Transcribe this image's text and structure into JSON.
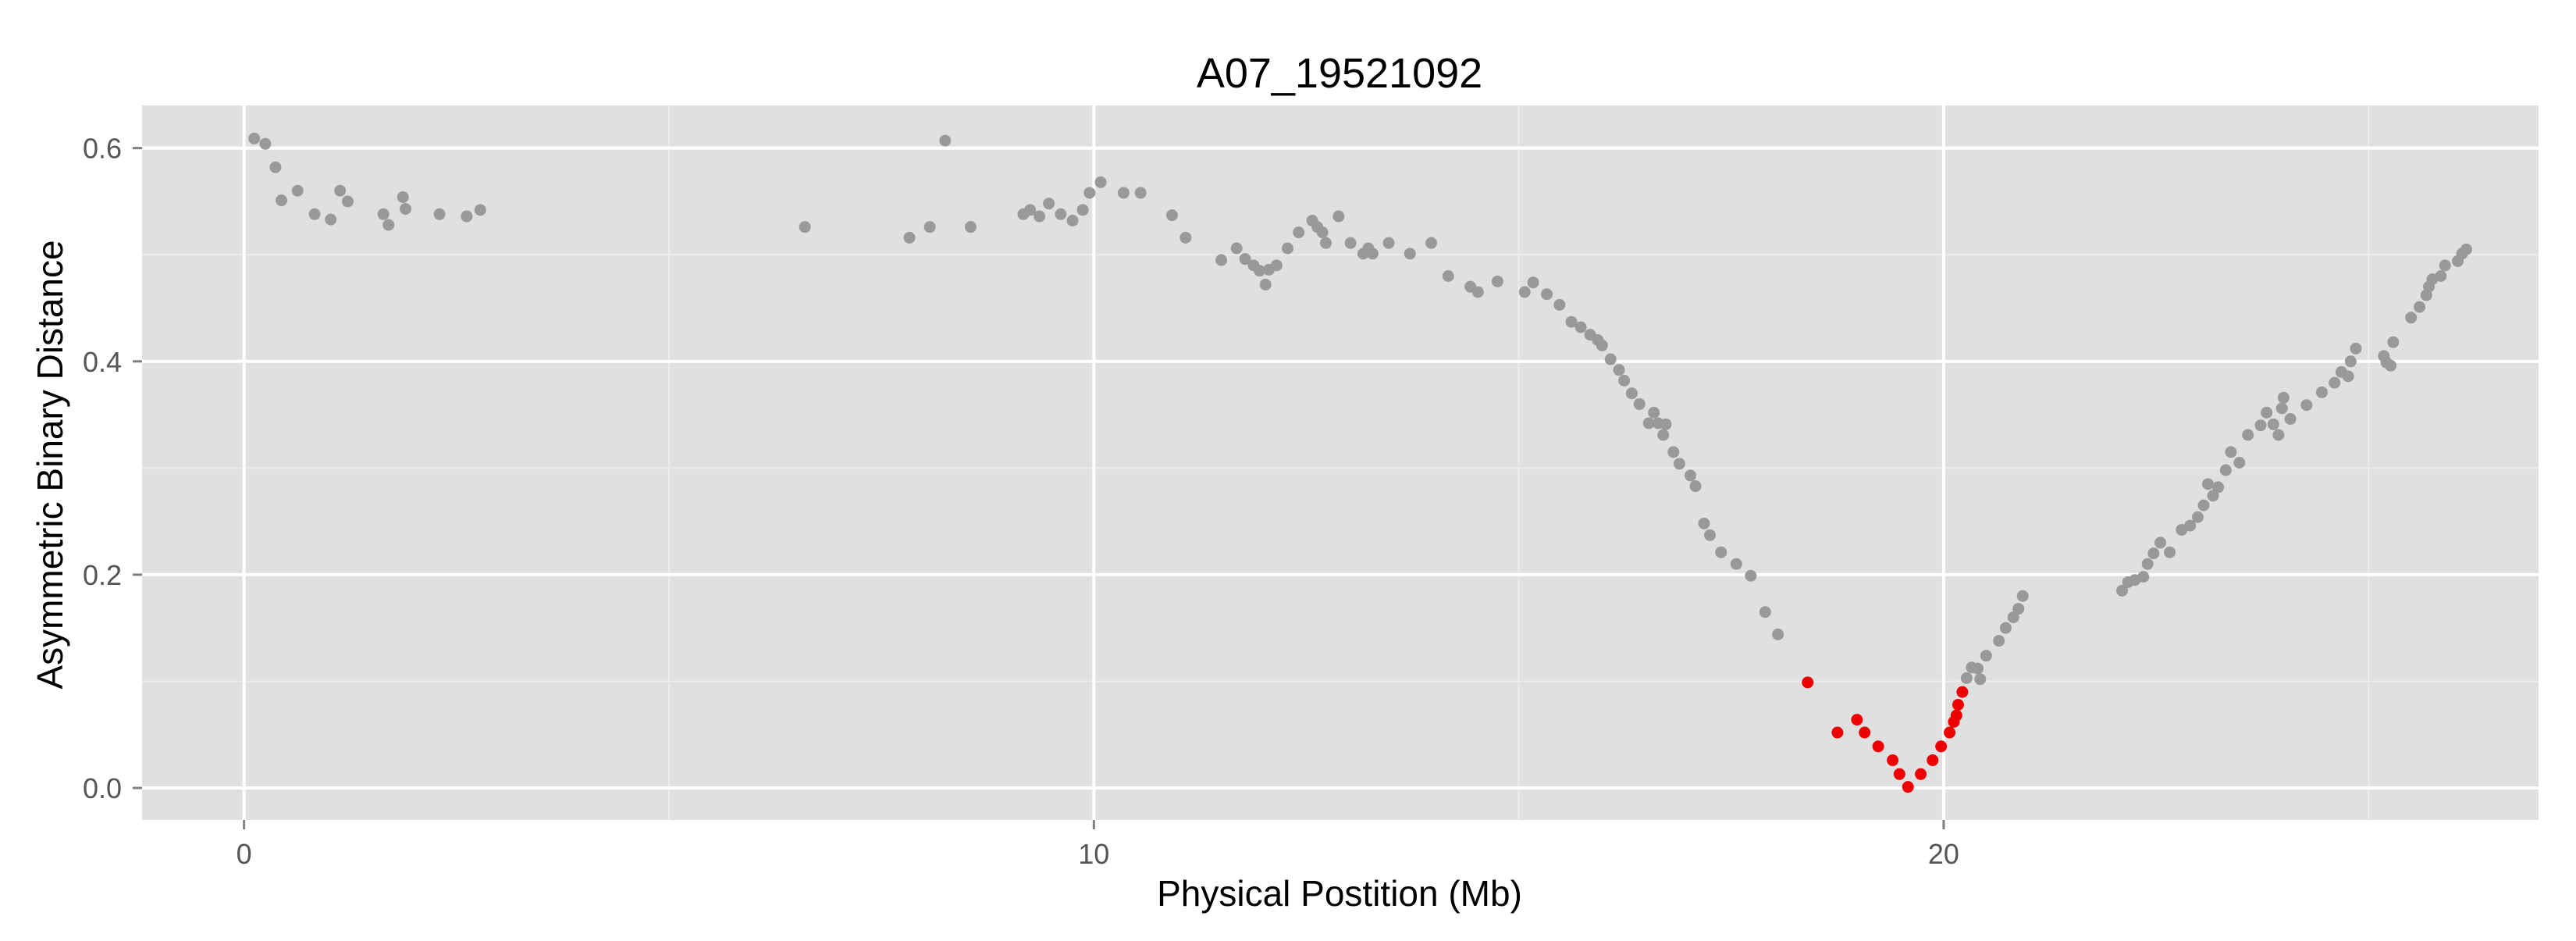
{
  "chart_data": {
    "type": "scatter",
    "title": "A07_19521092",
    "xlabel": "Physical Postition (Mb)",
    "ylabel": "Asymmetric Binary Distance",
    "xlim": [
      -1.2,
      27.0
    ],
    "ylim": [
      -0.03,
      0.64
    ],
    "x_ticks": [
      0,
      10,
      20
    ],
    "x_tick_labels": [
      "0",
      "10",
      "20"
    ],
    "y_ticks": [
      0.0,
      0.2,
      0.4,
      0.6
    ],
    "y_tick_labels": [
      "0.0",
      "0.2",
      "0.4",
      "0.6"
    ],
    "grid": true,
    "panel_color": "#e0e0e0",
    "series": [
      {
        "color": "#999999",
        "points": [
          [
            0.12,
            0.609
          ],
          [
            0.25,
            0.604
          ],
          [
            0.37,
            0.582
          ],
          [
            0.44,
            0.551
          ],
          [
            0.63,
            0.56
          ],
          [
            0.83,
            0.538
          ],
          [
            1.02,
            0.533
          ],
          [
            1.13,
            0.56
          ],
          [
            1.22,
            0.55
          ],
          [
            1.64,
            0.538
          ],
          [
            1.7,
            0.528
          ],
          [
            1.87,
            0.554
          ],
          [
            1.9,
            0.543
          ],
          [
            2.3,
            0.538
          ],
          [
            2.62,
            0.536
          ],
          [
            2.78,
            0.542
          ],
          [
            6.6,
            0.526
          ],
          [
            7.83,
            0.516
          ],
          [
            8.07,
            0.526
          ],
          [
            8.25,
            0.607
          ],
          [
            8.55,
            0.526
          ],
          [
            9.17,
            0.538
          ],
          [
            9.25,
            0.542
          ],
          [
            9.36,
            0.536
          ],
          [
            9.47,
            0.548
          ],
          [
            9.61,
            0.538
          ],
          [
            9.75,
            0.532
          ],
          [
            9.87,
            0.542
          ],
          [
            9.95,
            0.558
          ],
          [
            10.08,
            0.568
          ],
          [
            10.35,
            0.558
          ],
          [
            10.55,
            0.558
          ],
          [
            10.92,
            0.537
          ],
          [
            11.08,
            0.516
          ],
          [
            11.5,
            0.495
          ],
          [
            11.68,
            0.506
          ],
          [
            11.78,
            0.496
          ],
          [
            11.88,
            0.49
          ],
          [
            11.95,
            0.485
          ],
          [
            12.02,
            0.472
          ],
          [
            12.06,
            0.486
          ],
          [
            12.15,
            0.49
          ],
          [
            12.28,
            0.506
          ],
          [
            12.41,
            0.521
          ],
          [
            12.57,
            0.532
          ],
          [
            12.63,
            0.526
          ],
          [
            12.69,
            0.521
          ],
          [
            12.73,
            0.511
          ],
          [
            12.88,
            0.536
          ],
          [
            13.02,
            0.511
          ],
          [
            13.17,
            0.501
          ],
          [
            13.23,
            0.506
          ],
          [
            13.28,
            0.501
          ],
          [
            13.47,
            0.511
          ],
          [
            13.72,
            0.501
          ],
          [
            13.97,
            0.511
          ],
          [
            14.17,
            0.48
          ],
          [
            14.43,
            0.47
          ],
          [
            14.52,
            0.465
          ],
          [
            14.75,
            0.475
          ],
          [
            15.07,
            0.465
          ],
          [
            15.17,
            0.474
          ],
          [
            15.33,
            0.463
          ],
          [
            15.48,
            0.453
          ],
          [
            15.62,
            0.437
          ],
          [
            15.73,
            0.432
          ],
          [
            15.84,
            0.425
          ],
          [
            15.93,
            0.42
          ],
          [
            15.98,
            0.415
          ],
          [
            16.08,
            0.402
          ],
          [
            16.18,
            0.392
          ],
          [
            16.24,
            0.382
          ],
          [
            16.33,
            0.37
          ],
          [
            16.42,
            0.36
          ],
          [
            16.53,
            0.342
          ],
          [
            16.59,
            0.352
          ],
          [
            16.64,
            0.342
          ],
          [
            16.73,
            0.341
          ],
          [
            16.7,
            0.331
          ],
          [
            16.82,
            0.315
          ],
          [
            16.89,
            0.304
          ],
          [
            17.02,
            0.293
          ],
          [
            17.08,
            0.283
          ],
          [
            17.18,
            0.248
          ],
          [
            17.25,
            0.237
          ],
          [
            17.38,
            0.221
          ],
          [
            17.56,
            0.21
          ],
          [
            17.73,
            0.199
          ],
          [
            17.9,
            0.165
          ],
          [
            18.05,
            0.144
          ],
          [
            20.27,
            0.103
          ],
          [
            20.33,
            0.113
          ],
          [
            20.4,
            0.112
          ],
          [
            20.43,
            0.102
          ],
          [
            20.5,
            0.124
          ],
          [
            20.65,
            0.138
          ],
          [
            20.73,
            0.15
          ],
          [
            20.82,
            0.16
          ],
          [
            20.88,
            0.168
          ],
          [
            20.93,
            0.18
          ],
          [
            22.1,
            0.185
          ],
          [
            22.17,
            0.193
          ],
          [
            22.25,
            0.195
          ],
          [
            22.35,
            0.198
          ],
          [
            22.4,
            0.21
          ],
          [
            22.47,
            0.22
          ],
          [
            22.55,
            0.23
          ],
          [
            22.66,
            0.221
          ],
          [
            22.8,
            0.242
          ],
          [
            22.9,
            0.246
          ],
          [
            22.99,
            0.254
          ],
          [
            23.06,
            0.265
          ],
          [
            23.11,
            0.285
          ],
          [
            23.17,
            0.274
          ],
          [
            23.23,
            0.282
          ],
          [
            23.32,
            0.298
          ],
          [
            23.38,
            0.315
          ],
          [
            23.48,
            0.305
          ],
          [
            23.58,
            0.331
          ],
          [
            23.73,
            0.34
          ],
          [
            23.8,
            0.352
          ],
          [
            23.88,
            0.341
          ],
          [
            23.94,
            0.331
          ],
          [
            23.98,
            0.356
          ],
          [
            24.0,
            0.366
          ],
          [
            24.08,
            0.346
          ],
          [
            24.27,
            0.359
          ],
          [
            24.45,
            0.371
          ],
          [
            24.6,
            0.38
          ],
          [
            24.68,
            0.39
          ],
          [
            24.76,
            0.386
          ],
          [
            24.79,
            0.4
          ],
          [
            24.85,
            0.412
          ],
          [
            25.18,
            0.405
          ],
          [
            25.21,
            0.399
          ],
          [
            25.26,
            0.396
          ],
          [
            25.29,
            0.418
          ],
          [
            25.5,
            0.441
          ],
          [
            25.6,
            0.451
          ],
          [
            25.68,
            0.462
          ],
          [
            25.71,
            0.47
          ],
          [
            25.75,
            0.477
          ],
          [
            25.85,
            0.48
          ],
          [
            25.9,
            0.49
          ],
          [
            26.05,
            0.494
          ],
          [
            26.1,
            0.501
          ],
          [
            26.15,
            0.505
          ]
        ]
      },
      {
        "color": "#ee0000",
        "points": [
          [
            18.4,
            0.099
          ],
          [
            18.75,
            0.052
          ],
          [
            18.98,
            0.064
          ],
          [
            19.07,
            0.052
          ],
          [
            19.23,
            0.039
          ],
          [
            19.4,
            0.026
          ],
          [
            19.48,
            0.013
          ],
          [
            19.58,
            0.001
          ],
          [
            19.73,
            0.013
          ],
          [
            19.87,
            0.026
          ],
          [
            19.97,
            0.039
          ],
          [
            20.07,
            0.052
          ],
          [
            20.12,
            0.062
          ],
          [
            20.15,
            0.068
          ],
          [
            20.17,
            0.078
          ],
          [
            20.22,
            0.09
          ]
        ]
      }
    ]
  }
}
